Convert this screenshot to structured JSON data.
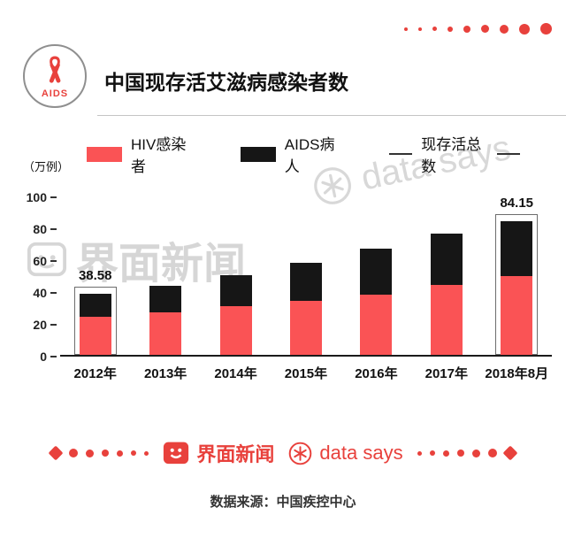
{
  "header": {
    "logo_text": "AIDS",
    "title": "中国现存活艾滋病感染者数"
  },
  "legend": {
    "items": [
      {
        "label": "HIV感染者",
        "swatch": "square",
        "color": "#fa5355"
      },
      {
        "label": "AIDS病人",
        "swatch": "square",
        "color": "#161616"
      },
      {
        "label": "现存活总数",
        "swatch": "line",
        "color": "#333333"
      }
    ]
  },
  "chart_data": {
    "type": "bar",
    "stacked": true,
    "title": "中国现存活艾滋病感染者数",
    "unit_label": "（万例）",
    "categories": [
      "2012年",
      "2013年",
      "2014年",
      "2015年",
      "2016年",
      "2017年",
      "2018年8月"
    ],
    "series": [
      {
        "name": "HIV感染者",
        "color": "#fa5355",
        "values": [
          24,
          26.5,
          30.5,
          34,
          38,
          44,
          49.5
        ]
      },
      {
        "name": "AIDS病人",
        "color": "#161616",
        "values": [
          14.58,
          17.1,
          19.6,
          23.7,
          28.5,
          31.9,
          34.65
        ]
      }
    ],
    "totals": [
      38.58,
      43.6,
      50.1,
      57.7,
      66.5,
      75.9,
      84.15
    ],
    "annotations": [
      {
        "index": 0,
        "label": "38.58"
      },
      {
        "index": 6,
        "label": "84.15"
      }
    ],
    "ylim": [
      0,
      100
    ],
    "yticks": [
      0,
      20,
      40,
      60,
      80,
      100
    ],
    "grid": false,
    "legend_position": "top"
  },
  "watermarks": {
    "jiemian": "界面新闻",
    "datasays": "data says"
  },
  "footer": {
    "jiemian_label": "界面新闻",
    "datasays_label": "data says",
    "source": "数据来源：中国疾控中心"
  },
  "colors": {
    "accent_red": "#e8413c",
    "bar_red": "#fa5355",
    "bar_black": "#161616"
  }
}
